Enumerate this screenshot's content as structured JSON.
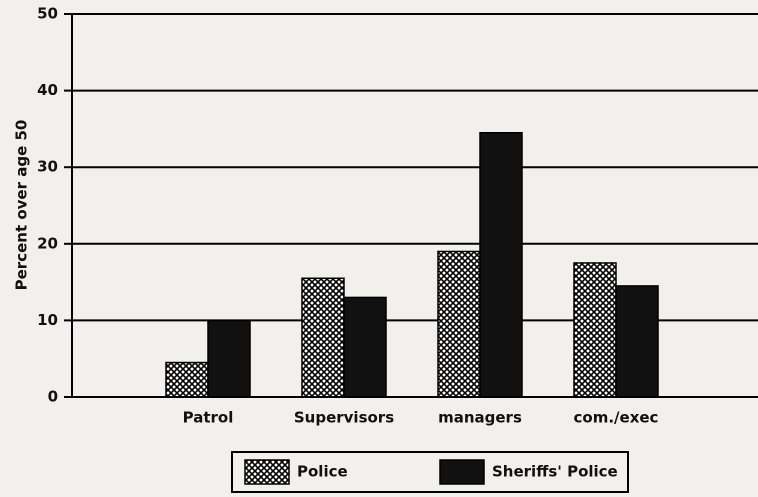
{
  "chart_data": {
    "type": "bar",
    "y_label": "Percent over age 50",
    "categories": [
      "Patrol",
      "Supervisors",
      "managers",
      "com./exec"
    ],
    "series": [
      {
        "name": "Police",
        "color": "#000000",
        "fill": "crosshatch",
        "values": [
          4.5,
          15.5,
          19,
          17.5
        ]
      },
      {
        "name": "Sheriffs' Police",
        "color": "#111111",
        "fill": "solid",
        "values": [
          10,
          13,
          34.5,
          14.5
        ]
      }
    ],
    "ylim": [
      0,
      50
    ],
    "yticks": [
      0,
      10,
      20,
      30,
      40,
      50
    ],
    "grid": true,
    "legend": "bottom"
  }
}
